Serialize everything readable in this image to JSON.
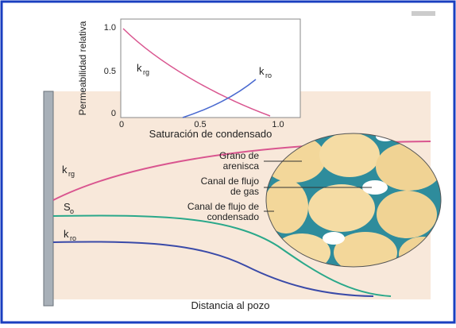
{
  "inset": {
    "y_axis_label": "Permeabilidad relativa",
    "x_axis_label": "Saturación de condensado",
    "y_ticks": [
      "1.0",
      "0.5",
      "0"
    ],
    "x_ticks": [
      "0",
      "0.5",
      "1.0"
    ],
    "curve_labels": [
      {
        "symbol": "k",
        "subscript": "rg"
      },
      {
        "symbol": "k",
        "subscript": "ro"
      }
    ]
  },
  "main": {
    "curve_labels": [
      {
        "symbol": "k",
        "subscript": "rg"
      },
      {
        "symbol": "S",
        "subscript": "o"
      },
      {
        "symbol": "k",
        "subscript": "ro"
      }
    ],
    "x_axis_label": "Distancia al pozo",
    "callouts": [
      [
        "Grano de",
        "arenisca"
      ],
      [
        "Canal de flujo",
        "de gas"
      ],
      [
        "Canal de flujo de",
        "condensado"
      ]
    ]
  }
}
